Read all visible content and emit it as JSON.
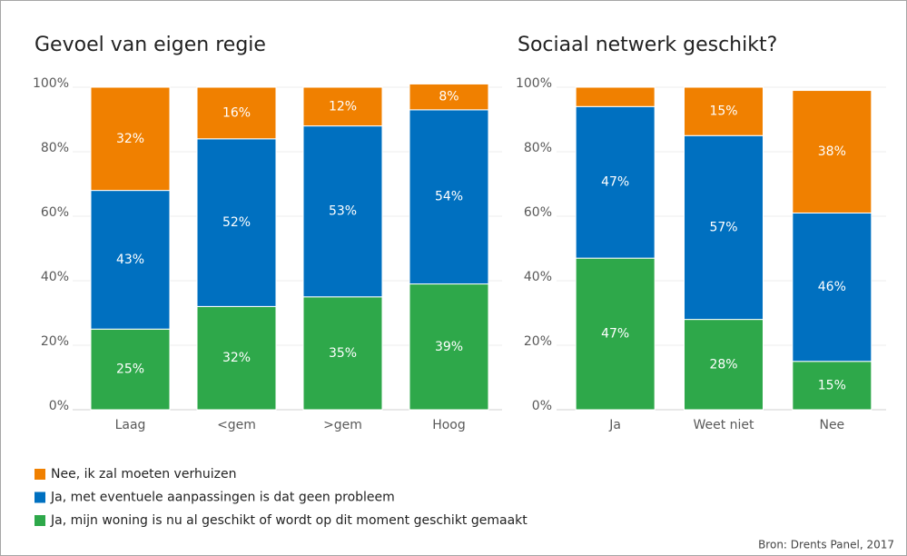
{
  "chart_data": [
    {
      "type": "stacked_bar",
      "title": "Gevoel van eigen regie",
      "categories": [
        "Laag",
        "<gem",
        ">gem",
        "Hoog"
      ],
      "series": [
        {
          "name": "Ja, mijn woning is nu al geschikt of wordt op dit moment geschikt gemaakt",
          "color": "#2ea84a",
          "values": [
            25,
            32,
            35,
            39
          ],
          "value_labels": [
            "25%",
            "32%",
            "35%",
            "39%"
          ]
        },
        {
          "name": "Ja, met eventuele aanpassingen is dat geen probleem",
          "color": "#0070c0",
          "values": [
            43,
            52,
            53,
            54
          ],
          "value_labels": [
            "43%",
            "52%",
            "53%",
            "54%"
          ]
        },
        {
          "name": "Nee, ik zal moeten verhuizen",
          "color": "#f08000",
          "values": [
            32,
            16,
            12,
            8
          ],
          "value_labels": [
            "32%",
            "16%",
            "12%",
            "8%"
          ]
        }
      ],
      "ylim": [
        0,
        100
      ],
      "yticks": [
        {
          "value": 0,
          "label": "0%"
        },
        {
          "value": 20,
          "label": "20%"
        },
        {
          "value": 40,
          "label": "40%"
        },
        {
          "value": 60,
          "label": "60%"
        },
        {
          "value": 80,
          "label": "80%"
        },
        {
          "value": 100,
          "label": "100%"
        }
      ],
      "grid": true
    },
    {
      "type": "stacked_bar",
      "title": "Sociaal netwerk geschikt?",
      "categories": [
        "Ja",
        "Weet niet",
        "Nee"
      ],
      "series": [
        {
          "color": "#2ea84a",
          "values": [
            47,
            28,
            15
          ],
          "value_labels": [
            "47%",
            "28%",
            "15%"
          ]
        },
        {
          "color": "#0070c0",
          "values": [
            47,
            57,
            46
          ],
          "value_labels": [
            "47%",
            "57%",
            "46%"
          ]
        },
        {
          "color": "#f08000",
          "values": [
            6,
            15,
            38
          ],
          "value_labels": [
            null,
            "15%",
            "38%"
          ]
        }
      ],
      "ylim": [
        0,
        100
      ],
      "yticks": [
        {
          "value": 0,
          "label": "0%"
        },
        {
          "value": 20,
          "label": "20%"
        },
        {
          "value": 40,
          "label": "40%"
        },
        {
          "value": 60,
          "label": "60%"
        },
        {
          "value": 80,
          "label": "80%"
        },
        {
          "value": 100,
          "label": "100%"
        }
      ],
      "grid": true
    }
  ],
  "source": "Bron: Drents Panel, 2017"
}
